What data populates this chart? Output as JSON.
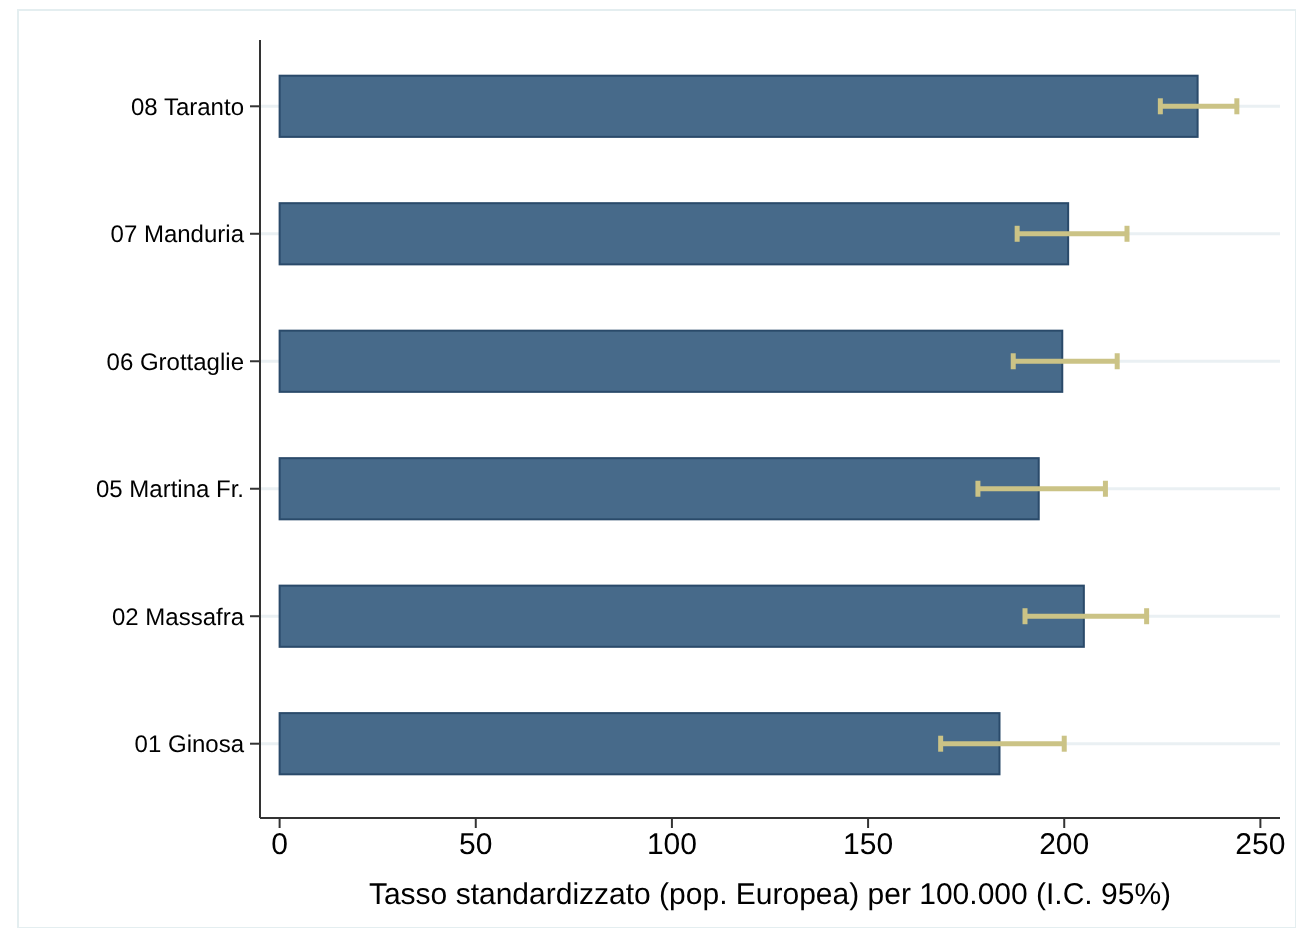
{
  "chart_data": {
    "type": "bar",
    "orientation": "horizontal",
    "xlabel": "Tasso standardizzato (pop. Europea) per 100.000 (I.C. 95%)",
    "categories": [
      "08 Taranto",
      "07 Manduria",
      "06 Grottaglie",
      "05 Martina Fr.",
      "02 Massafra",
      "01 Ginosa"
    ],
    "values": [
      234,
      201,
      199.5,
      193.5,
      205,
      183.5
    ],
    "color": "#476a8a",
    "errors": [
      [
        224.5,
        244
      ],
      [
        188,
        216
      ],
      [
        187,
        213.5
      ],
      [
        178,
        210.5
      ],
      [
        190,
        221
      ],
      [
        168.5,
        200
      ]
    ],
    "xlim": [
      -5,
      255
    ],
    "xticks": [
      0,
      50,
      100,
      150,
      200,
      250
    ],
    "grid": "y"
  }
}
